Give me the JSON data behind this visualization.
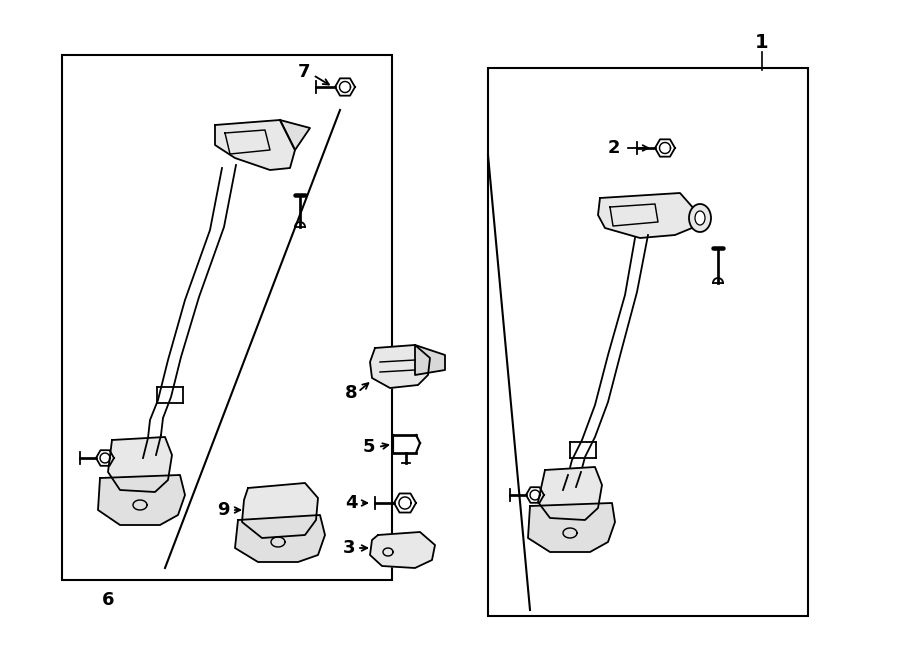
{
  "background_color": "#ffffff",
  "line_color": "#000000",
  "lw_main": 1.3,
  "lw_border": 1.5,
  "fig_w": 9.0,
  "fig_h": 6.62,
  "dpi": 100
}
